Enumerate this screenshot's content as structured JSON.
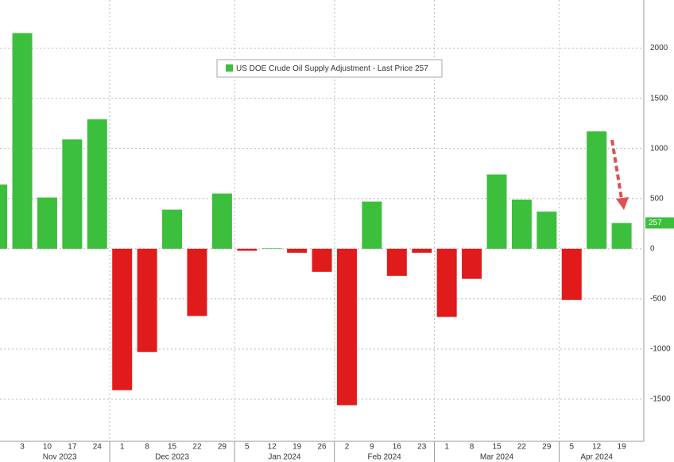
{
  "chart_data": {
    "type": "bar",
    "categories": [
      null,
      "3",
      "10",
      "17",
      "24",
      "1",
      "8",
      "15",
      "22",
      "29",
      "5",
      "12",
      "19",
      "26",
      "2",
      "9",
      "16",
      "23",
      "1",
      "8",
      "15",
      "22",
      "29",
      "5",
      "12",
      "19"
    ],
    "months": [
      "Nov 2023",
      "Dec 2023",
      "Jan 2024",
      "Feb 2024",
      "Mar 2024",
      "Apr 2024"
    ],
    "series": [
      {
        "name": "US DOE Crude Oil Supply Adjustment - Last Price 257",
        "color_positive": "#3cbf3c",
        "color_negative": "#e01b1b",
        "values": [
          640,
          2150,
          510,
          1090,
          1290,
          -1410,
          -1030,
          390,
          -670,
          550,
          -20,
          5,
          -40,
          -230,
          -1560,
          470,
          -270,
          -40,
          -680,
          -300,
          740,
          490,
          370,
          -510,
          1170,
          257
        ]
      }
    ],
    "last_price": 257,
    "ylim": [
      -1920,
      2480
    ],
    "yticks": [
      -1500,
      -1000,
      -500,
      0,
      500,
      1000,
      1500,
      2000
    ],
    "grid": true
  }
}
